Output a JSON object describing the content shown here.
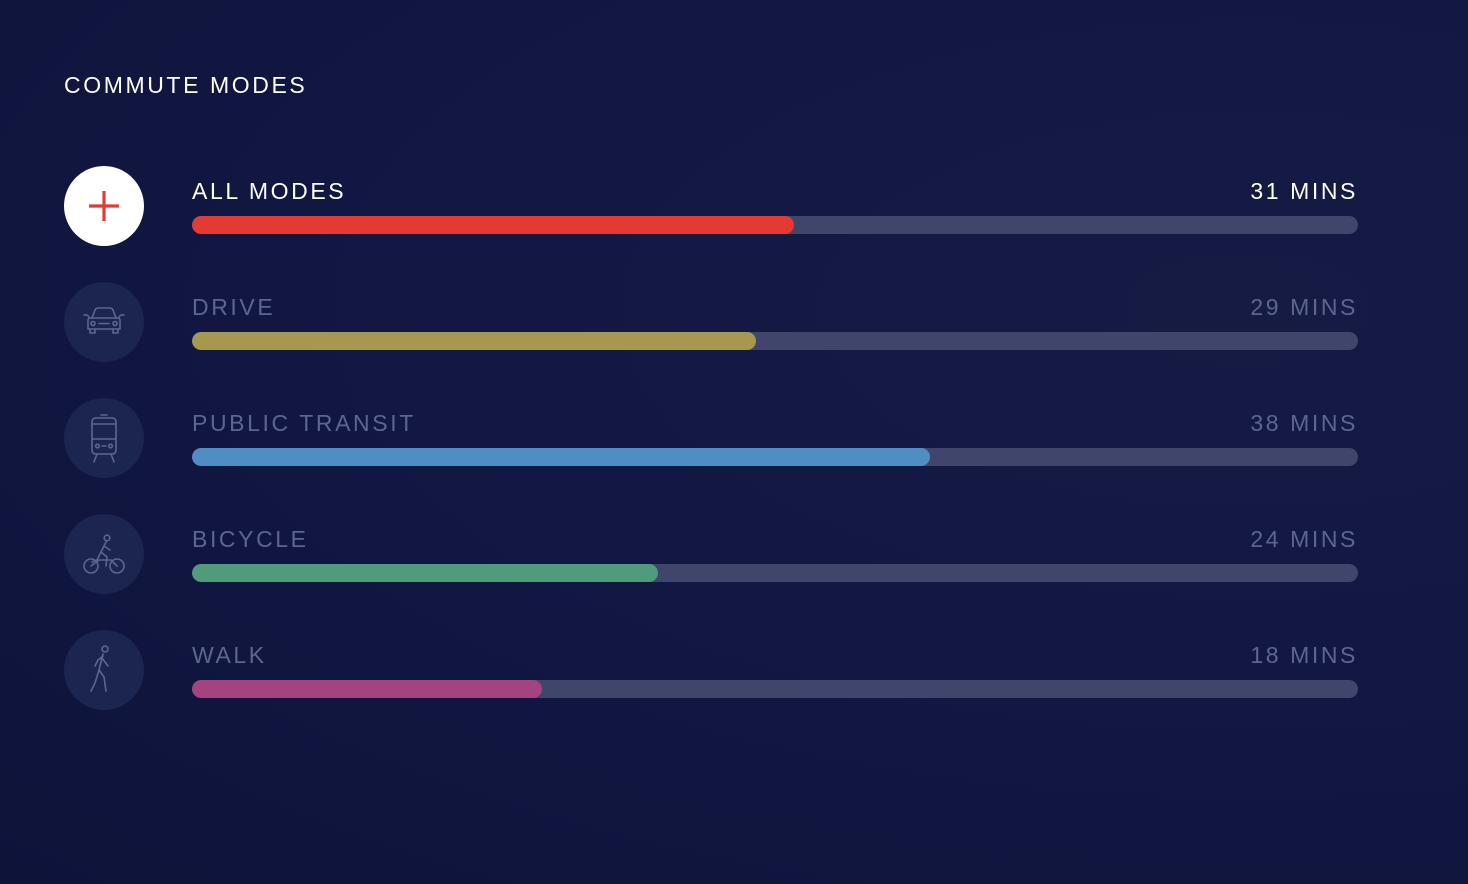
{
  "title": "COMMUTE MODES",
  "modes": [
    {
      "label": "ALL MODES",
      "value_text": "31 MINS",
      "minutes": 31,
      "fill_fraction": 0.516,
      "color": "#e53a33",
      "icon": "plus-icon",
      "active": true
    },
    {
      "label": "DRIVE",
      "value_text": "29 MINS",
      "minutes": 29,
      "fill_fraction": 0.484,
      "color": "#a79850",
      "icon": "car-icon",
      "active": false
    },
    {
      "label": "PUBLIC TRANSIT",
      "value_text": "38 MINS",
      "minutes": 38,
      "fill_fraction": 0.633,
      "color": "#4e8ec2",
      "icon": "train-icon",
      "active": false
    },
    {
      "label": "BICYCLE",
      "value_text": "24 MINS",
      "minutes": 24,
      "fill_fraction": 0.4,
      "color": "#4f9b7b",
      "icon": "bicycle-icon",
      "active": false
    },
    {
      "label": "WALK",
      "value_text": "18 MINS",
      "minutes": 18,
      "fill_fraction": 0.3,
      "color": "#a3437f",
      "icon": "walk-icon",
      "active": false
    }
  ]
}
